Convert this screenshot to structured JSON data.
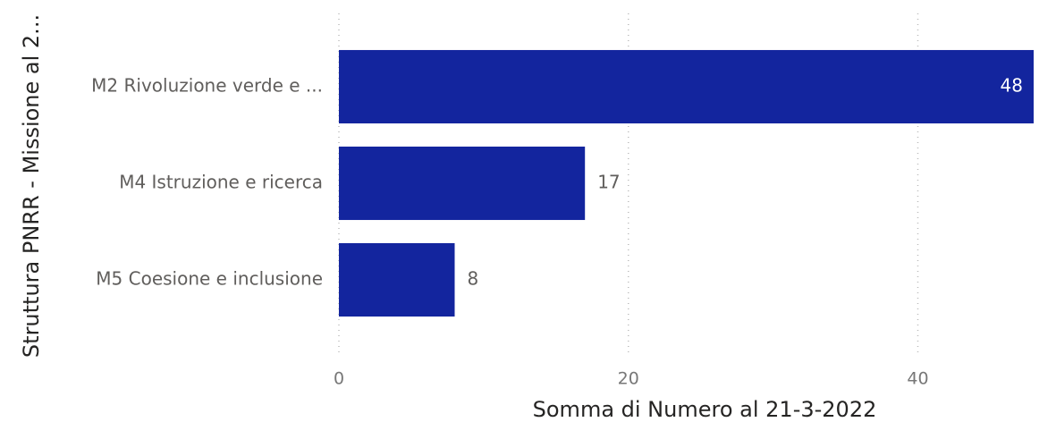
{
  "chart_data": {
    "type": "bar",
    "orientation": "horizontal",
    "categories": [
      "M2 Rivoluzione verde e ...",
      "M4 Istruzione e ricerca",
      "M5 Coesione e inclusione"
    ],
    "values": [
      48,
      17,
      8
    ],
    "color": "#13259e",
    "xlim": [
      0,
      48
    ],
    "xticks": [
      0,
      20,
      40
    ],
    "grid": true,
    "xlabel": "Somma di Numero al 21-3-2022",
    "ylabel": "Struttura PNRR - Missione al 2..."
  }
}
